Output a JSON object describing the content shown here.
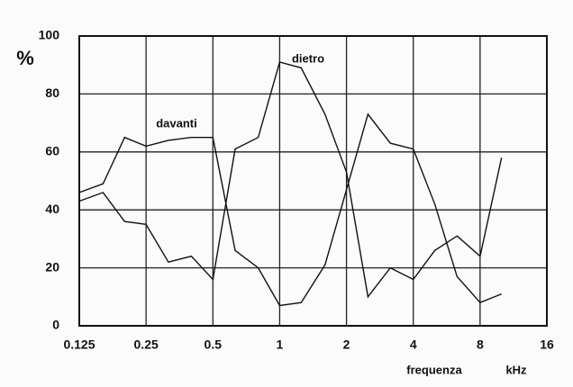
{
  "chart_data": {
    "type": "line",
    "y_label": "%",
    "x_label": "frequenza",
    "x_unit": "kHz",
    "x": [
      0.125,
      0.16,
      0.2,
      0.25,
      0.315,
      0.4,
      0.5,
      0.63,
      0.8,
      1,
      1.25,
      1.6,
      2,
      2.5,
      3.15,
      4,
      5,
      6.3,
      8,
      10
    ],
    "series": [
      {
        "name": "davanti",
        "color": "#111111",
        "values": [
          46,
          49,
          65,
          62,
          64,
          65,
          65,
          26,
          20,
          7,
          8,
          21,
          47,
          73,
          63,
          61,
          42,
          17,
          8,
          11
        ]
      },
      {
        "name": "dietro",
        "color": "#111111",
        "values": [
          43,
          46,
          36,
          35,
          22,
          24,
          16,
          61,
          65,
          91,
          89,
          73,
          53,
          10,
          20,
          16,
          26,
          31,
          24,
          58
        ]
      }
    ],
    "xlim": [
      0.125,
      16
    ],
    "ylim": [
      0,
      100
    ],
    "xticks": [
      0.125,
      0.25,
      0.5,
      1,
      2,
      4,
      8,
      16
    ],
    "yticks": [
      0,
      20,
      40,
      60,
      80,
      100
    ],
    "log_x": true,
    "grid": true
  }
}
